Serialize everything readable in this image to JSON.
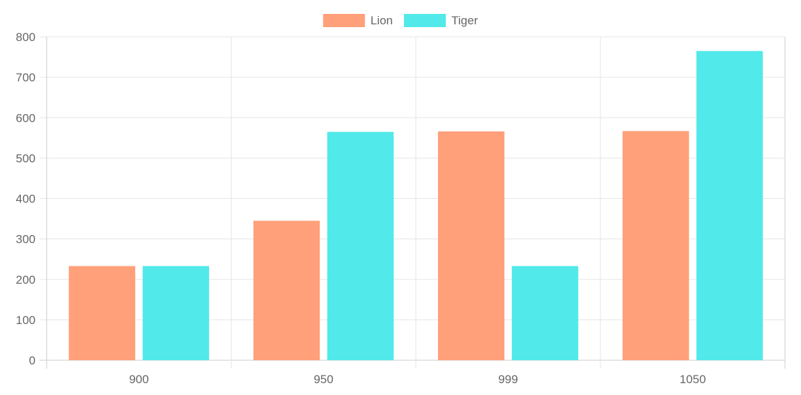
{
  "chart_data": {
    "type": "bar",
    "title": "",
    "xlabel": "",
    "ylabel": "",
    "categories": [
      "900",
      "950",
      "999",
      "1050"
    ],
    "series": [
      {
        "name": "Lion",
        "values": [
          233,
          345,
          566,
          567
        ],
        "color": "#ffa07a"
      },
      {
        "name": "Tiger",
        "values": [
          233,
          565,
          233,
          765
        ],
        "color": "#52e9ea"
      }
    ],
    "ylim": [
      0,
      800
    ],
    "y_ticks": [
      "0",
      "100",
      "200",
      "300",
      "400",
      "500",
      "600",
      "700",
      "800"
    ],
    "grid": true,
    "legend_position": "top-center",
    "colors": {
      "grid": "#e5e5e5",
      "axis": "#cccccc",
      "text": "#666666"
    }
  }
}
